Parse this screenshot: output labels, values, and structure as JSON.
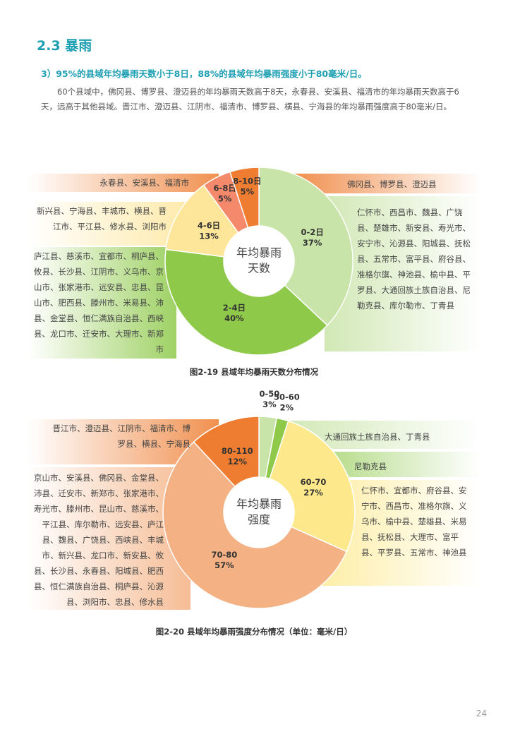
{
  "section_title": "2.3 暴雨",
  "subheading": "3）95%的县域年均暴雨天数小于8日，88%的县域年均暴雨强度小于80毫米/日。",
  "paragraph": "60个县域中，佛冈县、博罗县、澄迈县的年均暴雨天数高于8天，永春县、安溪县、福清市的年均暴雨天数高于6天，远高于其他县域。晋江市、澄迈县、江阴市、福清市、博罗县、横县、宁海县的年均暴雨强度高于80毫米/日。",
  "chart_data": [
    {
      "type": "pie",
      "title": "图2-19 县域年均暴雨天数分布情况",
      "center_label": [
        "年均暴雨",
        "天数"
      ],
      "categories": [
        "0-2日",
        "2-4日",
        "4-6日",
        "6-8日",
        "8-10日"
      ],
      "values": [
        37,
        40,
        13,
        5,
        5
      ],
      "value_labels": [
        "37%",
        "40%",
        "13%",
        "5%",
        "5%"
      ],
      "colors": [
        "#c9e4a8",
        "#8ec94a",
        "#fde69a",
        "#f4896b",
        "#ee7d31"
      ],
      "annotations": [
        "永春县、安溪县、福清市",
        "佛冈县、博罗县、澄迈县",
        "新兴县、宁海县、丰城市、横县、晋江市、平江县、修水县、浏阳市",
        "仁怀市、西昌市、魏县、广饶县、楚雄市、新安县、寿光市、安宁市、沁源县、阳城县、抚松县、五常市、富平县、府谷县、准格尔旗、神池县、榆中县、平罗县、大通回族土族自治县、尼勒克县、库尔勒市、丁青县",
        "庐江县、慈溪市、宜都市、桐庐县、攸县、长沙县、江阴市、义乌市、京山市、张家港市、远安县、忠县、昆山市、肥西县、滕州市、米易县、沛县、金堂县、恒仁满族自治县、西峡县、龙口市、迁安市、大理市、新郑市"
      ]
    },
    {
      "type": "pie",
      "title": "图2-20 县域年均暴雨强度分布情况（单位：毫米/日）",
      "center_label": [
        "年均暴雨",
        "强度"
      ],
      "categories": [
        "0-50",
        "50-60",
        "60-70",
        "70-80",
        "80-110"
      ],
      "values": [
        3,
        2,
        27,
        57,
        12
      ],
      "value_labels": [
        "3%",
        "2%",
        "27%",
        "57%",
        "12%"
      ],
      "colors": [
        "#c9e4a8",
        "#8ec94a",
        "#fde98c",
        "#f4b183",
        "#ee7d31"
      ],
      "annotations": [
        "晋江市、澄迈县、江阴市、福清市、博罗县、横县、宁海县",
        "大通回族土族自治县、丁青县",
        "尼勒克县",
        "仁怀市、宜都市、府谷县、安宁市、西昌市、准格尔旗、义乌市、榆中县、楚雄县、米易县、抚松县、大理市、富平县、平罗县、五常市、神池县",
        "京山市、安溪县、佛冈县、金堂县、沛县、迁安市、新郑市、张家港市、寿光市、滕州市、昆山市、慈溪市、平江县、库尔勒市、远安县、庐江县、魏县、广饶县、西峡县、丰城市、新兴县、龙口市、新安县、攸县、长沙县、永春县、阳城县、肥西县、恒仁满族自治县、桐庐县、沁源县、浏阳市、忠县、修水县"
      ]
    }
  ],
  "page_number": "24"
}
